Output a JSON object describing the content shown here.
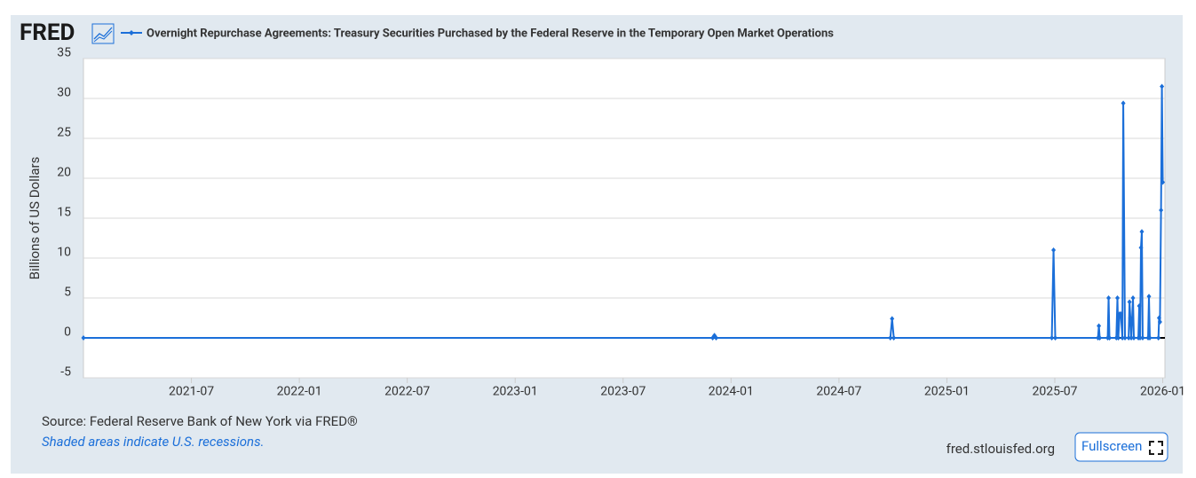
{
  "logo": "FRED",
  "chart_data": {
    "type": "line",
    "title": "Overnight Repurchase Agreements: Treasury Securities Purchased by the Federal Reserve in the Temporary Open Market Operations",
    "ylabel": "Billions of US Dollars",
    "series": [
      {
        "name": "Overnight Repurchase Agreements: Treasury Securities Purchased by the Federal Reserve in the Temporary Open Market Operations",
        "color": "#1b6fd9",
        "x": [
          2021.0,
          2023.915,
          2023.923,
          2023.931,
          2024.738,
          2024.746,
          2024.754,
          2025.486,
          2025.494,
          2025.502,
          2025.7,
          2025.704,
          2025.708,
          2025.745,
          2025.749,
          2025.753,
          2025.785,
          2025.79,
          2025.794,
          2025.8,
          2025.806,
          2025.813,
          2025.817,
          2025.825,
          2025.842,
          2025.846,
          2025.85,
          2025.854,
          2025.862,
          2025.866,
          2025.887,
          2025.891,
          2025.895,
          2025.899,
          2025.903,
          2025.907,
          2025.932,
          2025.936,
          2025.94,
          2025.98,
          2025.983,
          2025.987,
          2025.992,
          2025.996,
          2026.0
        ],
        "values": [
          0,
          0,
          0.3,
          0,
          0,
          2.4,
          0,
          0,
          11,
          0,
          0,
          1.5,
          0,
          0,
          5,
          0,
          0,
          5,
          0,
          3,
          3,
          0,
          29.4,
          0,
          0,
          4.5,
          2.5,
          0,
          5,
          0,
          0,
          4,
          0,
          11.3,
          13.3,
          0,
          0,
          5.2,
          0,
          0,
          2.5,
          2,
          16,
          31.5,
          19.5
        ]
      }
    ],
    "xlim": [
      2021.0,
      2026.01
    ],
    "xticks": [
      {
        "value": 2021.5,
        "label": "2021-07"
      },
      {
        "value": 2022.0,
        "label": "2022-01"
      },
      {
        "value": 2022.5,
        "label": "2022-07"
      },
      {
        "value": 2023.0,
        "label": "2023-01"
      },
      {
        "value": 2023.5,
        "label": "2023-07"
      },
      {
        "value": 2024.0,
        "label": "2024-01"
      },
      {
        "value": 2024.5,
        "label": "2024-07"
      },
      {
        "value": 2025.0,
        "label": "2025-01"
      },
      {
        "value": 2025.5,
        "label": "2025-07"
      },
      {
        "value": 2026.0,
        "label": "2026-01"
      }
    ],
    "ylim": [
      -5,
      35
    ],
    "yticks": [
      -5,
      0,
      5,
      10,
      15,
      20,
      25,
      30,
      35
    ],
    "grid": true
  },
  "footer": {
    "source": "Source: Federal Reserve Bank of New York via FRED®",
    "note": "Shaded areas indicate U.S. recessions.",
    "site": "fred.stlouisfed.org",
    "button": "Fullscreen"
  }
}
